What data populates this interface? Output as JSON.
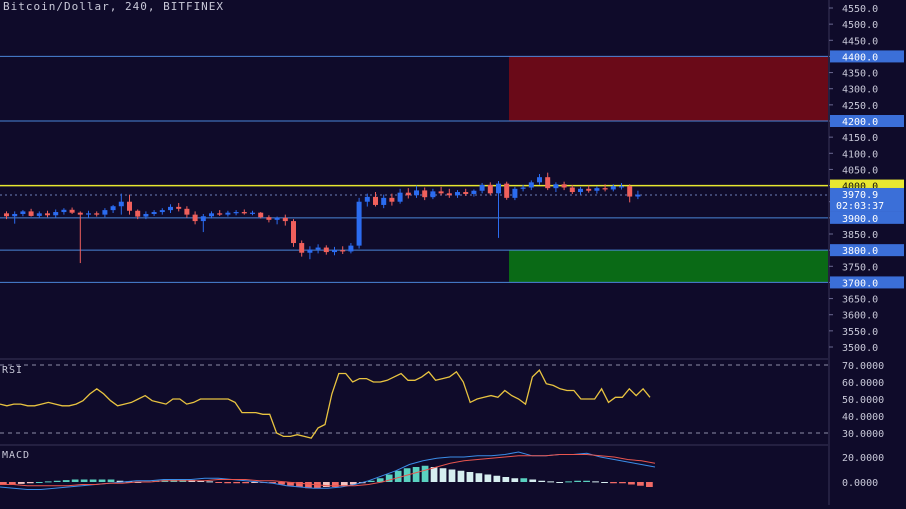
{
  "header": {
    "title": "Bitcoin/Dollar, 240, BITFINEX"
  },
  "colors": {
    "background": "#0f0b2a",
    "up_candle": "#2b6cf0",
    "down_candle": "#f0605c",
    "level_line": "#4a86d8",
    "resistance_line": "#e8e830",
    "sell_zone": "#6a0a18",
    "buy_zone": "#0a6a16",
    "rsi_line": "#e8c340",
    "macd_line": "#3b8de8",
    "signal_line": "#e8554e",
    "hist_up": "#5ad1c0",
    "hist_down": "#f06a66",
    "hist_light": "#d6eef0"
  },
  "chart_data": [
    {
      "type": "candlestick",
      "title": "Bitcoin/Dollar, 240, BITFINEX",
      "ylim": [
        3450,
        4600
      ],
      "price_ticks": [
        "4550.0",
        "4500.0",
        "4450.0",
        "4400.0",
        "4350.0",
        "4300.0",
        "4250.0",
        "4200.0",
        "4150.0",
        "4100.0",
        "4050.0",
        "4000.0",
        "3950.0",
        "3900.0",
        "3850.0",
        "3800.0",
        "3750.0",
        "3700.0",
        "3650.0",
        "3600.0",
        "3550.0",
        "3500.0"
      ],
      "candles": [
        [
          3914,
          3920,
          3896,
          3905
        ],
        [
          3905,
          3920,
          3882,
          3912
        ],
        [
          3912,
          3924,
          3905,
          3920
        ],
        [
          3920,
          3928,
          3904,
          3906
        ],
        [
          3906,
          3920,
          3900,
          3914
        ],
        [
          3914,
          3922,
          3902,
          3908
        ],
        [
          3908,
          3926,
          3900,
          3918
        ],
        [
          3918,
          3930,
          3910,
          3925
        ],
        [
          3925,
          3932,
          3912,
          3916
        ],
        [
          3916,
          3920,
          3760,
          3910
        ],
        [
          3910,
          3922,
          3900,
          3914
        ],
        [
          3914,
          3920,
          3904,
          3910
        ],
        [
          3910,
          3930,
          3902,
          3924
        ],
        [
          3924,
          3940,
          3915,
          3936
        ],
        [
          3936,
          3975,
          3910,
          3950
        ],
        [
          3950,
          3972,
          3910,
          3922
        ],
        [
          3922,
          3926,
          3896,
          3904
        ],
        [
          3904,
          3920,
          3896,
          3912
        ],
        [
          3912,
          3924,
          3906,
          3918
        ],
        [
          3918,
          3930,
          3910,
          3924
        ],
        [
          3924,
          3942,
          3915,
          3934
        ],
        [
          3934,
          3946,
          3920,
          3928
        ],
        [
          3928,
          3936,
          3900,
          3910
        ],
        [
          3910,
          3920,
          3880,
          3890
        ],
        [
          3890,
          3912,
          3856,
          3905
        ],
        [
          3905,
          3920,
          3898,
          3914
        ],
        [
          3914,
          3924,
          3906,
          3910
        ],
        [
          3910,
          3922,
          3904,
          3916
        ],
        [
          3916,
          3924,
          3908,
          3918
        ],
        [
          3918,
          3926,
          3910,
          3914
        ],
        [
          3914,
          3922,
          3908,
          3916
        ],
        [
          3916,
          3918,
          3898,
          3902
        ],
        [
          3902,
          3908,
          3886,
          3894
        ],
        [
          3894,
          3904,
          3880,
          3900
        ],
        [
          3900,
          3910,
          3876,
          3890
        ],
        [
          3890,
          3896,
          3810,
          3822
        ],
        [
          3822,
          3830,
          3780,
          3792
        ],
        [
          3792,
          3812,
          3772,
          3802
        ],
        [
          3802,
          3818,
          3790,
          3808
        ],
        [
          3808,
          3815,
          3786,
          3794
        ],
        [
          3794,
          3810,
          3784,
          3800
        ],
        [
          3800,
          3812,
          3788,
          3796
        ],
        [
          3796,
          3822,
          3790,
          3814
        ],
        [
          3814,
          3962,
          3805,
          3950
        ],
        [
          3950,
          3975,
          3935,
          3965
        ],
        [
          3965,
          3980,
          3935,
          3940
        ],
        [
          3940,
          3972,
          3930,
          3962
        ],
        [
          3962,
          3975,
          3938,
          3950
        ],
        [
          3950,
          3990,
          3944,
          3978
        ],
        [
          3978,
          3992,
          3960,
          3970
        ],
        [
          3970,
          4000,
          3962,
          3985
        ],
        [
          3985,
          3994,
          3955,
          3964
        ],
        [
          3964,
          3990,
          3958,
          3982
        ],
        [
          3982,
          3996,
          3970,
          3976
        ],
        [
          3976,
          3990,
          3962,
          3970
        ],
        [
          3970,
          3986,
          3962,
          3980
        ],
        [
          3980,
          3990,
          3968,
          3974
        ],
        [
          3974,
          3988,
          3966,
          3984
        ],
        [
          3984,
          4008,
          3976,
          4002
        ],
        [
          4002,
          4010,
          3970,
          3976
        ],
        [
          3976,
          4014,
          3838,
          4006
        ],
        [
          4006,
          4012,
          3956,
          3962
        ],
        [
          3962,
          3996,
          3955,
          3990
        ],
        [
          3990,
          4002,
          3982,
          3994
        ],
        [
          3994,
          4016,
          3986,
          4010
        ],
        [
          4010,
          4036,
          4002,
          4026
        ],
        [
          4026,
          4040,
          3986,
          3992
        ],
        [
          3992,
          4010,
          3980,
          4004
        ],
        [
          4004,
          4012,
          3986,
          3994
        ],
        [
          3994,
          4002,
          3974,
          3980
        ],
        [
          3980,
          3996,
          3972,
          3990
        ],
        [
          3990,
          4000,
          3978,
          3984
        ],
        [
          3984,
          3998,
          3975,
          3992
        ],
        [
          3992,
          4004,
          3982,
          3988
        ],
        [
          3988,
          4004,
          3982,
          3998
        ],
        [
          3998,
          4008,
          3988,
          3998
        ],
        [
          3998,
          4004,
          3948,
          3966
        ],
        [
          3966,
          3984,
          3958,
          3972
        ]
      ]
    },
    {
      "type": "line",
      "title": "RSI",
      "ylim": [
        22,
        72
      ],
      "ticks": [
        "70.0000",
        "60.0000",
        "50.0000",
        "40.0000",
        "30.0000"
      ],
      "guides": [
        70,
        30
      ],
      "values": [
        47,
        46,
        47,
        47,
        46,
        46,
        47,
        48,
        47,
        46,
        46,
        47,
        49,
        53,
        56,
        53,
        49,
        46,
        47,
        48,
        50,
        52,
        49,
        48,
        47,
        50,
        50,
        47,
        48,
        50,
        50,
        50,
        50,
        50,
        48,
        42,
        42,
        42,
        41,
        41,
        30,
        28,
        28,
        29,
        28,
        27,
        33,
        35,
        53,
        65,
        65,
        60,
        62,
        62,
        60,
        60,
        61,
        63,
        65,
        61,
        61,
        63,
        66,
        61,
        62,
        63,
        66,
        60,
        48,
        50,
        51,
        52,
        51,
        55,
        52,
        50,
        47,
        63,
        67,
        59,
        58,
        56,
        55,
        55,
        50,
        50,
        50,
        56,
        48,
        51,
        51,
        56,
        52,
        56,
        51
      ]
    },
    {
      "type": "bar",
      "title": "MACD",
      "ylim": [
        -6,
        26
      ],
      "ticks": [
        "20.0000",
        "0.0000"
      ],
      "histogram": [
        -2,
        -2,
        -1.5,
        -1,
        0,
        0.5,
        1,
        1.5,
        2,
        2,
        2,
        2,
        2,
        1,
        0.5,
        0,
        0.5,
        1,
        1.5,
        2,
        2,
        1.5,
        1,
        0.5,
        -0.5,
        -1,
        -1,
        -1,
        -0.5,
        -0.5,
        -1,
        -2,
        -3,
        -4,
        -5,
        -5,
        -4,
        -4,
        -3,
        -2,
        -1,
        1,
        3,
        6,
        9,
        11,
        12,
        13,
        12,
        11,
        10,
        9,
        8,
        7,
        6,
        5,
        4,
        3,
        3,
        2,
        1,
        0.5,
        0,
        0.5,
        1,
        1,
        0.5,
        0,
        -1,
        -1,
        -2,
        -3,
        -4
      ],
      "series": [
        {
          "name": "MACD",
          "values": [
            -4,
            -5,
            -6,
            -6,
            -5,
            -4,
            -3,
            -2,
            -1,
            0,
            1,
            1,
            2,
            2,
            2,
            3,
            3,
            2,
            1,
            0,
            -1,
            -3,
            -4,
            -5,
            -5,
            -4,
            -2,
            1,
            5,
            9,
            14,
            17,
            19,
            20,
            20,
            21,
            21,
            22,
            24,
            21,
            21,
            22,
            22,
            23,
            20,
            18,
            16,
            14,
            12
          ]
        },
        {
          "name": "Signal",
          "values": [
            -2,
            -2,
            -3,
            -3,
            -3,
            -3,
            -2,
            -2,
            -1,
            -1,
            0,
            0,
            1,
            1,
            1,
            1,
            2,
            2,
            2,
            1,
            1,
            0,
            -1,
            -2,
            -3,
            -3,
            -3,
            -2,
            0,
            3,
            6,
            9,
            12,
            15,
            17,
            18,
            19,
            20,
            21,
            21,
            21,
            22,
            22,
            22,
            21,
            20,
            18,
            17,
            15
          ]
        }
      ]
    }
  ],
  "levels": {
    "sell_top": 4400,
    "sell_bottom": 4200,
    "resistance": 4000,
    "support1": 3900,
    "buy_top": 3800,
    "buy_bottom": 3700,
    "current": 3970.9
  },
  "labels": {
    "resistance_label": "4000.0",
    "level_4400": "4400.0",
    "level_4200": "4200.0",
    "level_3900": "3900.0",
    "level_3800": "3800.0",
    "level_3700": "3700.0",
    "current_price": "3970.9",
    "countdown": "02:03:37"
  },
  "panes": {
    "rsi_label": "RSI",
    "macd_label": "MACD"
  }
}
